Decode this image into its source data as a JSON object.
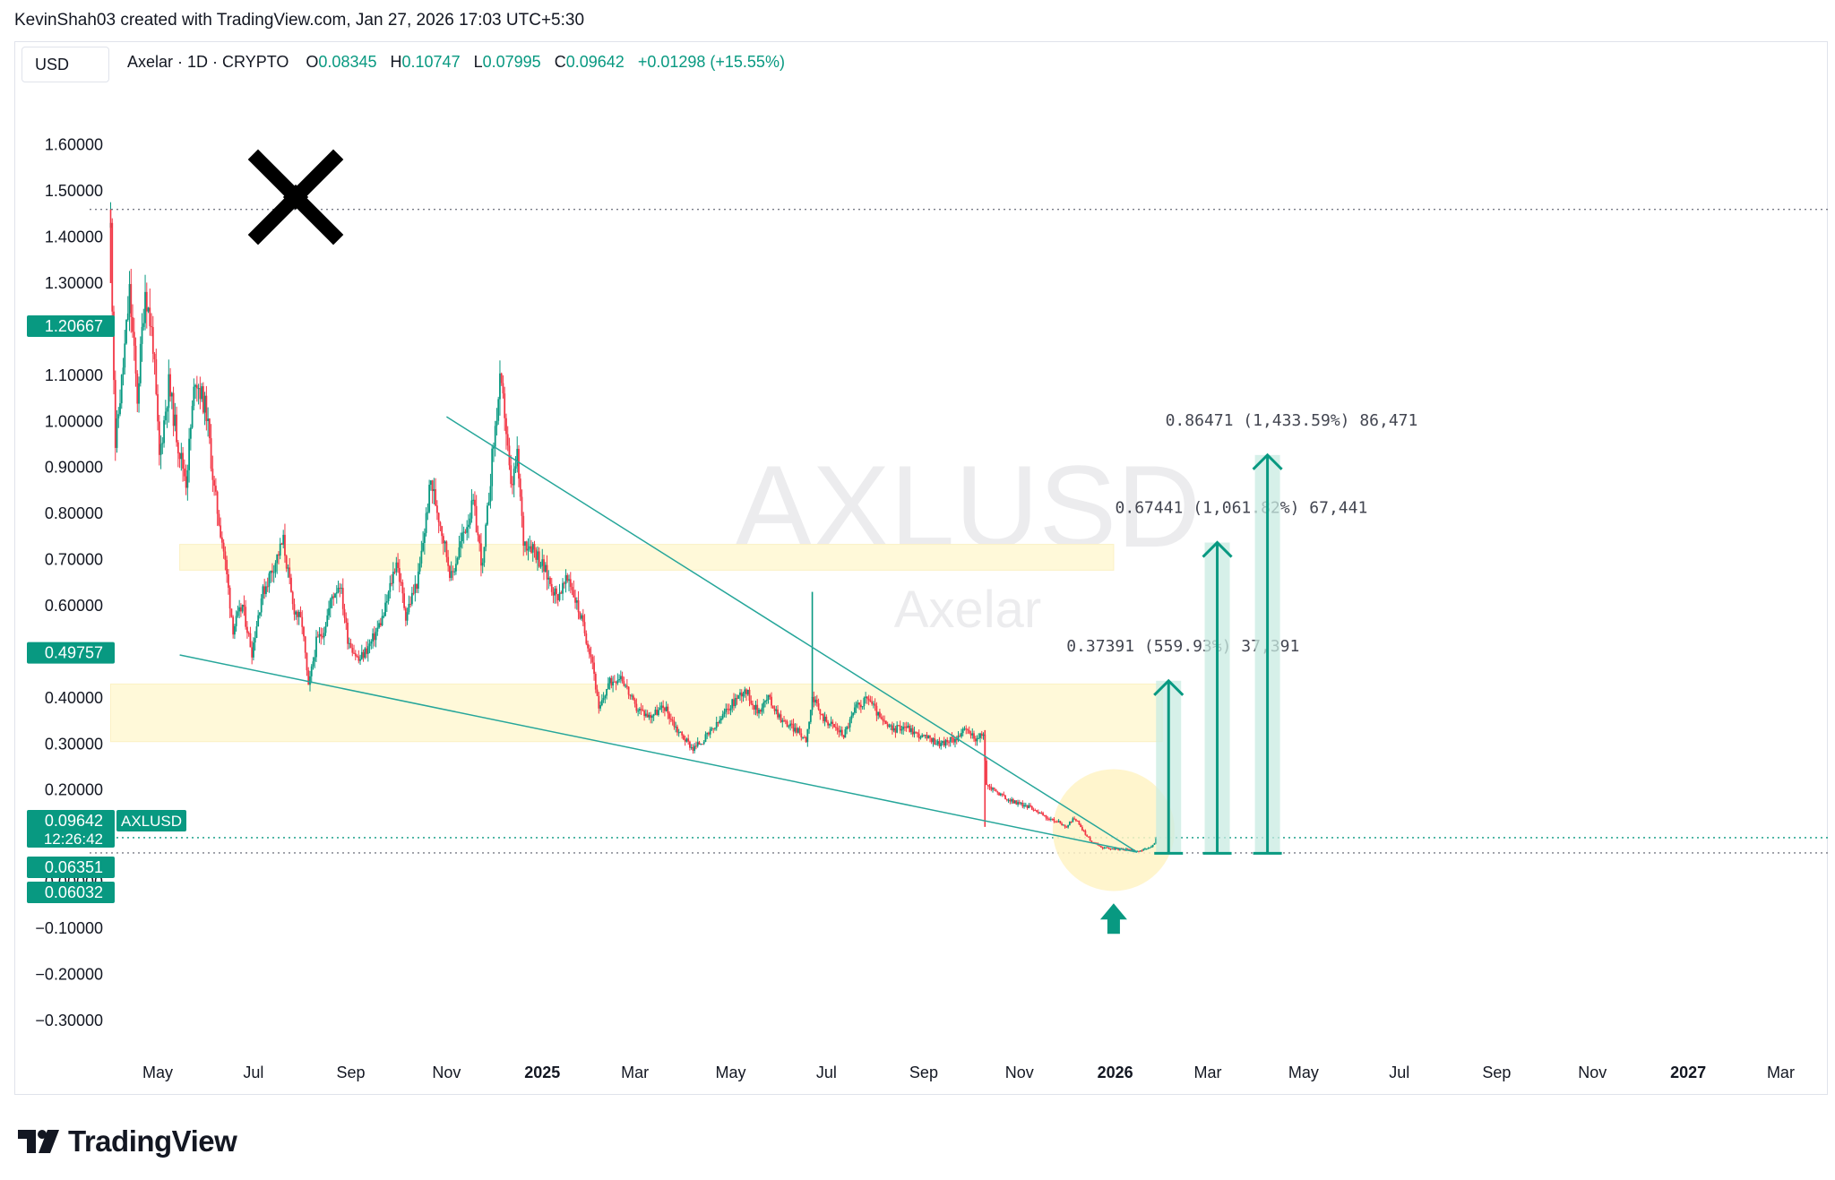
{
  "header": {
    "attribution": "KevinShah03 created with TradingView.com, Jan 27, 2026 17:03 UTC+5:30"
  },
  "toolbar": {
    "currency": "USD"
  },
  "legend": {
    "symbol": "Axelar · 1D · CRYPTO",
    "o_label": "O",
    "o_value": "0.08345",
    "h_label": "H",
    "h_value": "0.10747",
    "l_label": "L",
    "l_value": "0.07995",
    "c_label": "C",
    "c_value": "0.09642",
    "change": "+0.01298 (+15.55%)"
  },
  "watermark": {
    "ticker": "AXLUSD",
    "name": "Axelar"
  },
  "footer": {
    "brand": "TradingView"
  },
  "colors": {
    "up": "#089981",
    "down": "#f23645",
    "trendline": "#26a69a",
    "zone": "#fff9d9",
    "highlight": "#fff3c4",
    "target": "#089981",
    "target_fill": "#c8ebe1"
  },
  "chart_data": {
    "type": "candlestick",
    "title": "Axelar · 1D · CRYPTO",
    "y_ticks": [
      "1.60000",
      "1.50000",
      "1.40000",
      "1.30000",
      "1.20000",
      "1.10000",
      "1.00000",
      "0.90000",
      "0.80000",
      "0.70000",
      "0.60000",
      "0.50000",
      "0.40000",
      "0.30000",
      "0.20000",
      "0.10000",
      "0.00000",
      "−0.10000",
      "−0.20000",
      "−0.30000"
    ],
    "y_tick_values": [
      1.6,
      1.5,
      1.4,
      1.3,
      1.2,
      1.1,
      1.0,
      0.9,
      0.8,
      0.7,
      0.6,
      0.5,
      0.4,
      0.3,
      0.2,
      0.1,
      0.0,
      -0.1,
      -0.2,
      -0.3
    ],
    "ylim": [
      -0.38,
      1.72
    ],
    "x_ticks": [
      {
        "label": "May",
        "date": "2024-05-01",
        "bold": false
      },
      {
        "label": "Jul",
        "date": "2024-07-01",
        "bold": false
      },
      {
        "label": "Sep",
        "date": "2024-09-01",
        "bold": false
      },
      {
        "label": "Nov",
        "date": "2024-11-01",
        "bold": false
      },
      {
        "label": "2025",
        "date": "2025-01-01",
        "bold": true
      },
      {
        "label": "Mar",
        "date": "2025-03-01",
        "bold": false
      },
      {
        "label": "May",
        "date": "2025-05-01",
        "bold": false
      },
      {
        "label": "Jul",
        "date": "2025-07-01",
        "bold": false
      },
      {
        "label": "Sep",
        "date": "2025-09-01",
        "bold": false
      },
      {
        "label": "Nov",
        "date": "2025-11-01",
        "bold": false
      },
      {
        "label": "2026",
        "date": "2026-01-01",
        "bold": true
      },
      {
        "label": "Mar",
        "date": "2026-03-01",
        "bold": false
      },
      {
        "label": "May",
        "date": "2026-05-01",
        "bold": false
      },
      {
        "label": "Jul",
        "date": "2026-07-01",
        "bold": false
      },
      {
        "label": "Sep",
        "date": "2026-09-01",
        "bold": false
      },
      {
        "label": "Nov",
        "date": "2026-11-01",
        "bold": false
      },
      {
        "label": "2027",
        "date": "2027-01-01",
        "bold": true
      },
      {
        "label": "Mar",
        "date": "2027-03-01",
        "bold": false
      }
    ],
    "xlim": [
      "2024-03-30",
      "2027-03-31"
    ],
    "price_path": [
      [
        "2024-04-01",
        1.42
      ],
      [
        "2024-04-04",
        0.95
      ],
      [
        "2024-04-09",
        1.12
      ],
      [
        "2024-04-13",
        1.28
      ],
      [
        "2024-04-18",
        1.05
      ],
      [
        "2024-04-23",
        1.29
      ],
      [
        "2024-04-28",
        1.17
      ],
      [
        "2024-05-02",
        0.92
      ],
      [
        "2024-05-08",
        1.08
      ],
      [
        "2024-05-14",
        0.95
      ],
      [
        "2024-05-19",
        0.87
      ],
      [
        "2024-05-25",
        1.1
      ],
      [
        "2024-06-01",
        1.02
      ],
      [
        "2024-06-06",
        0.85
      ],
      [
        "2024-06-12",
        0.72
      ],
      [
        "2024-06-18",
        0.55
      ],
      [
        "2024-06-24",
        0.6
      ],
      [
        "2024-06-30",
        0.5
      ],
      [
        "2024-07-06",
        0.62
      ],
      [
        "2024-07-13",
        0.68
      ],
      [
        "2024-07-20",
        0.74
      ],
      [
        "2024-07-26",
        0.6
      ],
      [
        "2024-08-01",
        0.56
      ],
      [
        "2024-08-05",
        0.42
      ],
      [
        "2024-08-10",
        0.52
      ],
      [
        "2024-08-15",
        0.55
      ],
      [
        "2024-08-20",
        0.62
      ],
      [
        "2024-08-25",
        0.65
      ],
      [
        "2024-08-30",
        0.53
      ],
      [
        "2024-09-06",
        0.48
      ],
      [
        "2024-09-14",
        0.52
      ],
      [
        "2024-09-22",
        0.58
      ],
      [
        "2024-09-30",
        0.7
      ],
      [
        "2024-10-06",
        0.58
      ],
      [
        "2024-10-14",
        0.66
      ],
      [
        "2024-10-22",
        0.87
      ],
      [
        "2024-10-28",
        0.78
      ],
      [
        "2024-11-04",
        0.66
      ],
      [
        "2024-11-12",
        0.76
      ],
      [
        "2024-11-18",
        0.82
      ],
      [
        "2024-11-24",
        0.68
      ],
      [
        "2024-11-30",
        0.92
      ],
      [
        "2024-12-05",
        1.08
      ],
      [
        "2024-12-08",
        1.02
      ],
      [
        "2024-12-12",
        0.85
      ],
      [
        "2024-12-16",
        0.92
      ],
      [
        "2024-12-20",
        0.74
      ],
      [
        "2024-12-26",
        0.73
      ],
      [
        "2025-01-02",
        0.68
      ],
      [
        "2025-01-10",
        0.62
      ],
      [
        "2025-01-18",
        0.66
      ],
      [
        "2025-01-25",
        0.58
      ],
      [
        "2025-02-02",
        0.48
      ],
      [
        "2025-02-06",
        0.37
      ],
      [
        "2025-02-12",
        0.43
      ],
      [
        "2025-02-20",
        0.45
      ],
      [
        "2025-03-01",
        0.38
      ],
      [
        "2025-03-10",
        0.36
      ],
      [
        "2025-03-20",
        0.38
      ],
      [
        "2025-03-28",
        0.33
      ],
      [
        "2025-04-07",
        0.29
      ],
      [
        "2025-04-14",
        0.31
      ],
      [
        "2025-04-22",
        0.34
      ],
      [
        "2025-04-30",
        0.38
      ],
      [
        "2025-05-10",
        0.42
      ],
      [
        "2025-05-18",
        0.37
      ],
      [
        "2025-05-25",
        0.4
      ],
      [
        "2025-06-03",
        0.35
      ],
      [
        "2025-06-12",
        0.33
      ],
      [
        "2025-06-18",
        0.31
      ],
      [
        "2025-06-22",
        0.4
      ],
      [
        "2025-06-28",
        0.36
      ],
      [
        "2025-07-05",
        0.34
      ],
      [
        "2025-07-12",
        0.32
      ],
      [
        "2025-07-20",
        0.38
      ],
      [
        "2025-07-28",
        0.4
      ],
      [
        "2025-08-05",
        0.35
      ],
      [
        "2025-08-12",
        0.33
      ],
      [
        "2025-08-20",
        0.34
      ],
      [
        "2025-08-28",
        0.32
      ],
      [
        "2025-09-05",
        0.31
      ],
      [
        "2025-09-12",
        0.3
      ],
      [
        "2025-09-20",
        0.31
      ],
      [
        "2025-09-28",
        0.33
      ],
      [
        "2025-10-05",
        0.31
      ],
      [
        "2025-10-09",
        0.32
      ],
      [
        "2025-10-11",
        0.21
      ],
      [
        "2025-10-16",
        0.2
      ],
      [
        "2025-10-24",
        0.18
      ],
      [
        "2025-11-01",
        0.17
      ],
      [
        "2025-11-10",
        0.16
      ],
      [
        "2025-11-18",
        0.14
      ],
      [
        "2025-11-26",
        0.13
      ],
      [
        "2025-12-01",
        0.12
      ],
      [
        "2025-12-06",
        0.14
      ],
      [
        "2025-12-10",
        0.12
      ],
      [
        "2025-12-16",
        0.09
      ],
      [
        "2025-12-24",
        0.075
      ],
      [
        "2026-01-02",
        0.072
      ],
      [
        "2026-01-10",
        0.07
      ],
      [
        "2026-01-16",
        0.068
      ],
      [
        "2026-01-22",
        0.072
      ],
      [
        "2026-01-26",
        0.083
      ],
      [
        "2026-01-27",
        0.0964
      ]
    ],
    "horizontal_lines": [
      {
        "value": 1.46,
        "style": "dotted",
        "color": "#787b86"
      },
      {
        "value": 0.09642,
        "style": "dotted",
        "color": "#089981"
      },
      {
        "value": 0.0635,
        "style": "dotted",
        "color": "#787b86"
      }
    ],
    "zones": [
      {
        "from": "2024-05-15",
        "to": "2025-12-31",
        "low": 0.677,
        "high": 0.733
      },
      {
        "from": "2024-04-01",
        "to": "2026-01-31",
        "low": 0.305,
        "high": 0.43
      }
    ],
    "trendlines": [
      {
        "from": [
          "2024-11-01",
          1.01
        ],
        "to": [
          "2026-01-15",
          0.065
        ]
      },
      {
        "from": [
          "2024-05-15",
          0.493
        ],
        "to": [
          "2026-01-15",
          0.065
        ]
      }
    ],
    "highlight_circle": {
      "date": "2025-12-31",
      "value": 0.113
    },
    "up_arrow": {
      "date": "2025-12-31",
      "value": -0.085
    },
    "price_labels": [
      {
        "value": 1.20667,
        "text": "1.20667"
      },
      {
        "value": 0.49757,
        "text": "0.49757"
      },
      {
        "value": 0.09642,
        "text": "0.09642",
        "extra": "12:26:42",
        "tag": "AXLUSD"
      },
      {
        "value": 0.06351,
        "text": "0.06351"
      },
      {
        "value": 0.06032,
        "text": "0.06032"
      }
    ],
    "targets": [
      {
        "date": "2026-02-04",
        "base": 0.0625,
        "top": 0.437,
        "label": "0.37391 (559.93%) 37,391"
      },
      {
        "date": "2026-03-07",
        "base": 0.0625,
        "top": 0.737,
        "label": "0.67441 (1,061.82%) 67,441"
      },
      {
        "date": "2026-04-08",
        "base": 0.0625,
        "top": 0.927,
        "label": "0.86471 (1,433.59%) 86,471"
      }
    ]
  }
}
